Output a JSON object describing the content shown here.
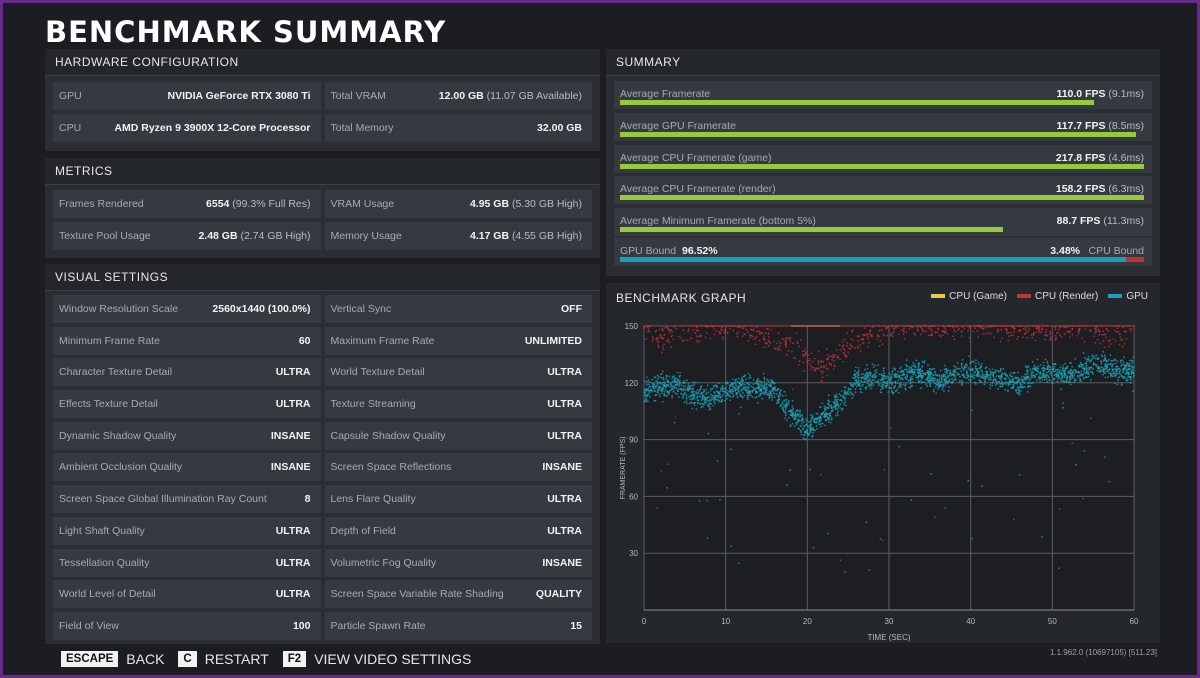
{
  "page_title": "BENCHMARK SUMMARY",
  "hardware": {
    "heading": "HARDWARE CONFIGURATION",
    "rows": [
      {
        "label": "GPU",
        "value": "NVIDIA GeForce RTX 3080 Ti",
        "sub": ""
      },
      {
        "label": "Total VRAM",
        "value": "12.00 GB",
        "sub": "(11.07 GB Available)"
      },
      {
        "label": "CPU",
        "value": "AMD Ryzen 9 3900X 12-Core Processor",
        "sub": ""
      },
      {
        "label": "Total Memory",
        "value": "32.00 GB",
        "sub": ""
      }
    ]
  },
  "metrics": {
    "heading": "METRICS",
    "rows": [
      {
        "label": "Frames Rendered",
        "value": "6554",
        "sub": "(99.3% Full Res)"
      },
      {
        "label": "VRAM Usage",
        "value": "4.95 GB",
        "sub": "(5.30 GB High)"
      },
      {
        "label": "Texture Pool Usage",
        "value": "2.48 GB",
        "sub": "(2.74 GB High)"
      },
      {
        "label": "Memory Usage",
        "value": "4.17 GB",
        "sub": "(4.55 GB High)"
      }
    ]
  },
  "visual_settings": {
    "heading": "VISUAL SETTINGS",
    "rows": [
      {
        "label": "Window Resolution Scale",
        "value": "2560x1440 (100.0%)"
      },
      {
        "label": "Vertical Sync",
        "value": "OFF"
      },
      {
        "label": "Minimum Frame Rate",
        "value": "60"
      },
      {
        "label": "Maximum Frame Rate",
        "value": "UNLIMITED"
      },
      {
        "label": "Character Texture Detail",
        "value": "ULTRA"
      },
      {
        "label": "World Texture Detail",
        "value": "ULTRA"
      },
      {
        "label": "Effects Texture Detail",
        "value": "ULTRA"
      },
      {
        "label": "Texture Streaming",
        "value": "ULTRA"
      },
      {
        "label": "Dynamic Shadow Quality",
        "value": "INSANE"
      },
      {
        "label": "Capsule Shadow Quality",
        "value": "ULTRA"
      },
      {
        "label": "Ambient Occlusion Quality",
        "value": "INSANE"
      },
      {
        "label": "Screen Space Reflections",
        "value": "INSANE"
      },
      {
        "label": "Screen Space Global Illumination Ray Count",
        "value": "8"
      },
      {
        "label": "Lens Flare Quality",
        "value": "ULTRA"
      },
      {
        "label": "Light Shaft Quality",
        "value": "ULTRA"
      },
      {
        "label": "Depth of Field",
        "value": "ULTRA"
      },
      {
        "label": "Tessellation Quality",
        "value": "ULTRA"
      },
      {
        "label": "Volumetric Fog Quality",
        "value": "INSANE"
      },
      {
        "label": "World Level of Detail",
        "value": "ULTRA"
      },
      {
        "label": "Screen Space Variable Rate Shading",
        "value": "QUALITY"
      },
      {
        "label": "Field of View",
        "value": "100"
      },
      {
        "label": "Particle Spawn Rate",
        "value": "15"
      }
    ]
  },
  "summary": {
    "heading": "SUMMARY",
    "bar_color": "#97c93d",
    "rows": [
      {
        "label": "Average Framerate",
        "value": "110.0 FPS",
        "sub": "(9.1ms)",
        "fill": 0.905
      },
      {
        "label": "Average GPU Framerate",
        "value": "117.7 FPS",
        "sub": "(8.5ms)",
        "fill": 0.985
      },
      {
        "label": "Average CPU Framerate (game)",
        "value": "217.8 FPS",
        "sub": "(4.6ms)",
        "fill": 1.0
      },
      {
        "label": "Average CPU Framerate (render)",
        "value": "158.2 FPS",
        "sub": "(6.3ms)",
        "fill": 1.0
      },
      {
        "label": "Average Minimum Framerate (bottom 5%)",
        "value": "88.7 FPS",
        "sub": "(11.3ms)",
        "fill": 0.73
      }
    ],
    "bound": {
      "gpu_label": "GPU Bound",
      "gpu_value": "96.52%",
      "cpu_label": "CPU Bound",
      "cpu_value": "3.48%",
      "gpu_fraction": 0.9652,
      "gpu_color": "#1aa1b6",
      "cpu_color": "#c0323a"
    }
  },
  "graph": {
    "heading": "BENCHMARK GRAPH",
    "legend": [
      {
        "name": "CPU (Game)",
        "color": "#e8c84a"
      },
      {
        "name": "CPU (Render)",
        "color": "#c0323a"
      },
      {
        "name": "GPU",
        "color": "#1aa1b6"
      }
    ]
  },
  "chart_data": {
    "type": "scatter",
    "xlabel": "TIME (SEC)",
    "ylabel": "FRAMERATE (FPS)",
    "xlim": [
      0,
      60
    ],
    "ylim": [
      0,
      150
    ],
    "x_ticks": [
      "0",
      "10",
      "20",
      "30",
      "40",
      "50",
      "60"
    ],
    "y_ticks": [
      "30",
      "60",
      "90",
      "120",
      "150"
    ],
    "grid": true,
    "series": [
      {
        "name": "CPU (Game)",
        "color": "#e8c84a",
        "x": [
          0,
          5,
          10,
          15,
          20,
          25,
          30,
          35,
          40,
          45,
          50,
          55,
          60
        ],
        "y": [
          150,
          150,
          150,
          150,
          150,
          150,
          150,
          150,
          150,
          150,
          150,
          150,
          150
        ]
      },
      {
        "name": "CPU (Render)",
        "color": "#c0323a",
        "x": [
          1,
          3,
          5,
          8,
          12,
          16,
          18,
          20,
          22,
          25,
          28,
          32,
          36,
          40,
          45,
          50,
          54,
          57,
          60
        ],
        "y": [
          143,
          145,
          148,
          150,
          150,
          140,
          142,
          132,
          128,
          140,
          147,
          150,
          150,
          150,
          150,
          148,
          150,
          145,
          150
        ]
      },
      {
        "name": "GPU",
        "color": "#1aa1b6",
        "x": [
          0,
          2,
          4,
          6,
          8,
          10,
          12,
          14,
          16,
          18,
          20,
          22,
          24,
          26,
          28,
          30,
          32,
          34,
          36,
          38,
          40,
          42,
          44,
          46,
          48,
          50,
          52,
          54,
          56,
          58,
          60
        ],
        "y": [
          115,
          118,
          119,
          114,
          111,
          116,
          118,
          117,
          116,
          104,
          95,
          103,
          110,
          121,
          123,
          120,
          124,
          126,
          120,
          125,
          127,
          124,
          122,
          120,
          125,
          126,
          124,
          128,
          130,
          126,
          127
        ]
      }
    ]
  },
  "footer": {
    "items": [
      {
        "key": "ESCAPE",
        "label": "BACK"
      },
      {
        "key": "C",
        "label": "RESTART"
      },
      {
        "key": "F2",
        "label": "VIEW VIDEO SETTINGS"
      }
    ],
    "version": "1.1.962.0 (10697105) [511.23]"
  }
}
